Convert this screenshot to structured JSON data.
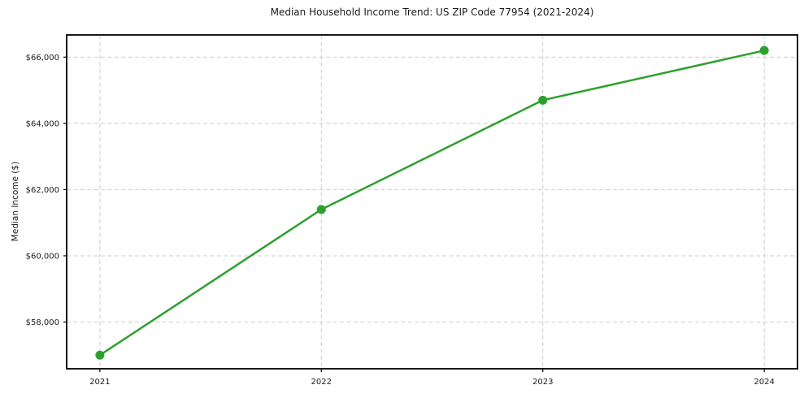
{
  "chart_data": {
    "type": "line",
    "title": "Median Household Income Trend: US ZIP Code 77954 (2021-2024)",
    "xlabel": "",
    "ylabel": "Median Income ($)",
    "x": [
      2021,
      2022,
      2023,
      2024
    ],
    "values": [
      57000,
      61400,
      64700,
      66200
    ],
    "x_tick_labels": [
      "2021",
      "2022",
      "2023",
      "2024"
    ],
    "y_ticks": [
      58000,
      60000,
      62000,
      64000,
      66000
    ],
    "y_tick_labels": [
      "$58,000",
      "$60,000",
      "$62,000",
      "$64,000",
      "$66,000"
    ],
    "xlim": [
      2020.85,
      2024.15
    ],
    "ylim": [
      56590,
      66670
    ],
    "grid": true,
    "grid_style": "dashed",
    "legend": false,
    "line_color": "#2ca02c",
    "marker_color": "#2ca02c",
    "grid_color": "#cccccc",
    "axis_color": "#000000",
    "text_color": "#1a1a1a"
  }
}
